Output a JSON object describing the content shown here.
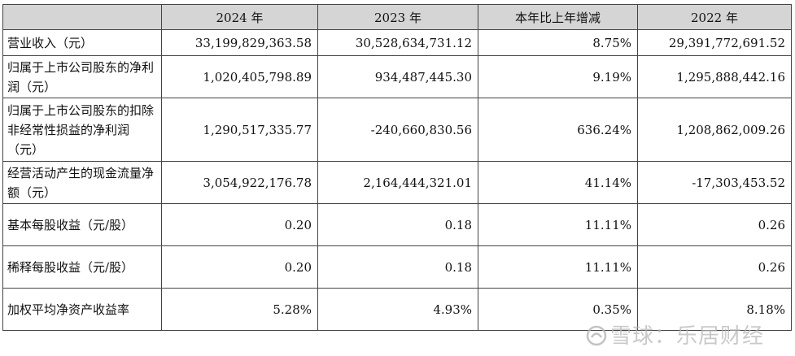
{
  "headers": [
    "",
    "2024 年",
    "2023 年",
    "本年比上年增减",
    "2022 年"
  ],
  "rows": [
    {
      "label": "营业收入（元）",
      "v2024": "33,199,829,363.58",
      "v2023": "30,528,634,731.12",
      "change": "8.75%",
      "v2022": "29,391,772,691.52"
    },
    {
      "label": "归属于上市公司股东的净利润（元）",
      "v2024": "1,020,405,798.89",
      "v2023": "934,487,445.30",
      "change": "9.19%",
      "v2022": "1,295,888,442.16"
    },
    {
      "label": "归属于上市公司股东的扣除非经常性损益的净利润（元）",
      "v2024": "1,290,517,335.77",
      "v2023": "-240,660,830.56",
      "change": "636.24%",
      "v2022": "1,208,862,009.26"
    },
    {
      "label": "经营活动产生的现金流量净额（元）",
      "v2024": "3,054,922,176.78",
      "v2023": "2,164,444,321.01",
      "change": "41.14%",
      "v2022": "-17,303,453.52"
    },
    {
      "label": "基本每股收益（元/股）",
      "v2024": "0.20",
      "v2023": "0.18",
      "change": "11.11%",
      "v2022": "0.26"
    },
    {
      "label": "稀释每股收益（元/股）",
      "v2024": "0.20",
      "v2023": "0.18",
      "change": "11.11%",
      "v2022": "0.26"
    },
    {
      "label": "加权平均净资产收益率",
      "v2024": "5.28%",
      "v2023": "4.93%",
      "change": "0.35%",
      "v2022": "8.18%"
    }
  ],
  "watermark": "雪球：乐居财经",
  "watermark_icon": "snowball-logo-icon"
}
